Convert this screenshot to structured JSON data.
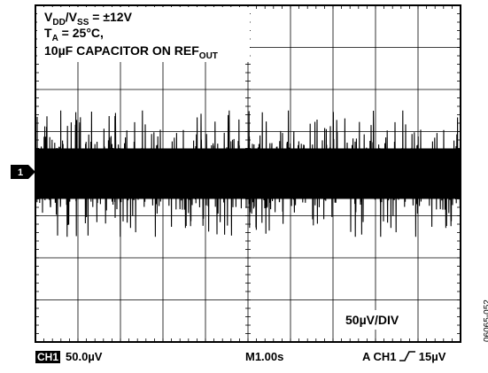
{
  "chart_data": {
    "type": "line",
    "title": "",
    "annotations": {
      "line1": {
        "pre": "V",
        "sub1": "DD",
        "mid": "/V",
        "sub2": "SS",
        "post": " = ±12V"
      },
      "line2": {
        "pre": "T",
        "sub": "A",
        "post": " = 25°C,"
      },
      "line3": {
        "pre": "10µF CAPACITOR ON REF",
        "sub": "OUT"
      }
    },
    "scale_label": "50µV/DIV",
    "channel_marker": "1",
    "divisions": {
      "x": 10,
      "y": 8
    },
    "grid": true,
    "noise": {
      "center_div": 4.0,
      "dense_band_div": [
        3.25,
        4.75
      ],
      "peak_envelope_div": [
        2.5,
        5.5
      ],
      "description_units": "divisions from top"
    },
    "footer": {
      "ch1_box": "CH1",
      "ch1_scale": "50.0µV",
      "timebase": "M1.00s",
      "trigger_pre": "A CH1",
      "trigger_level": "15µV"
    },
    "figure_id": "06065-052"
  }
}
